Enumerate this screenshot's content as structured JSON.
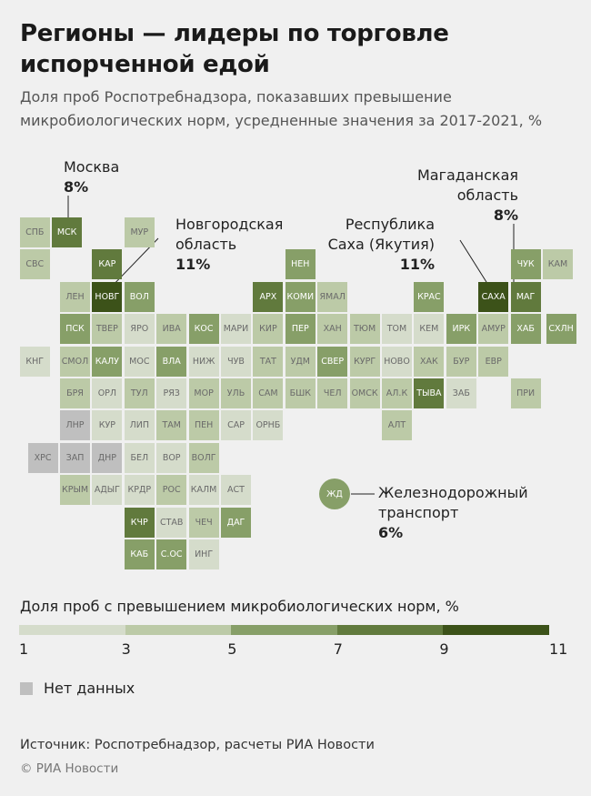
{
  "title": "Регионы — лидеры по торговле испорченной едой",
  "subtitle": "Доля проб Роспотребнадзора, показавших превышение микробиологических норм, усредненные значения за 2017-2021, %",
  "chart_data": {
    "type": "heatmap",
    "subtype": "tile-map",
    "bins": [
      {
        "range": [
          1,
          3
        ],
        "color": "#d5dccb"
      },
      {
        "range": [
          3,
          5
        ],
        "color": "#bccaa7"
      },
      {
        "range": [
          5,
          7
        ],
        "color": "#879f68"
      },
      {
        "range": [
          7,
          9
        ],
        "color": "#617a3d"
      },
      {
        "range": [
          9,
          11
        ],
        "color": "#3c5219"
      }
    ],
    "no_data_color": "#bfbfbf",
    "tiles": [
      {
        "code": "СПБ",
        "bin": 2
      },
      {
        "code": "МСК",
        "bin": 4,
        "value": 8
      },
      {
        "code": "МУР",
        "bin": 2
      },
      {
        "code": "СВС",
        "bin": 2
      },
      {
        "code": "КАР",
        "bin": 4
      },
      {
        "code": "НЕН",
        "bin": 3
      },
      {
        "code": "ЧУК",
        "bin": 3
      },
      {
        "code": "КАМ",
        "bin": 2
      },
      {
        "code": "ЛЕН",
        "bin": 2
      },
      {
        "code": "НОВГ",
        "bin": 5,
        "value": 11
      },
      {
        "code": "ВОЛ",
        "bin": 3
      },
      {
        "code": "АРХ",
        "bin": 4
      },
      {
        "code": "КОМИ",
        "bin": 3
      },
      {
        "code": "ЯМАЛ",
        "bin": 2
      },
      {
        "code": "КРАС",
        "bin": 3
      },
      {
        "code": "САХА",
        "bin": 5,
        "value": 11
      },
      {
        "code": "МАГ",
        "bin": 4,
        "value": 8
      },
      {
        "code": "ПСК",
        "bin": 3
      },
      {
        "code": "ТВЕР",
        "bin": 2
      },
      {
        "code": "ЯРО",
        "bin": 1
      },
      {
        "code": "ИВА",
        "bin": 2
      },
      {
        "code": "КОС",
        "bin": 3
      },
      {
        "code": "МАРИ",
        "bin": 1
      },
      {
        "code": "КИР",
        "bin": 2
      },
      {
        "code": "ПЕР",
        "bin": 3
      },
      {
        "code": "ХАН",
        "bin": 2
      },
      {
        "code": "ТЮМ",
        "bin": 2
      },
      {
        "code": "ТОМ",
        "bin": 1
      },
      {
        "code": "КЕМ",
        "bin": 1
      },
      {
        "code": "ИРК",
        "bin": 3
      },
      {
        "code": "АМУР",
        "bin": 2
      },
      {
        "code": "ХАБ",
        "bin": 3
      },
      {
        "code": "СХЛН",
        "bin": 3
      },
      {
        "code": "КНГ",
        "bin": 1
      },
      {
        "code": "СМОЛ",
        "bin": 2
      },
      {
        "code": "КАЛУ",
        "bin": 3
      },
      {
        "code": "МОС",
        "bin": 1
      },
      {
        "code": "ВЛА",
        "bin": 3
      },
      {
        "code": "НИЖ",
        "bin": 1
      },
      {
        "code": "ЧУВ",
        "bin": 1
      },
      {
        "code": "ТАТ",
        "bin": 2
      },
      {
        "code": "УДМ",
        "bin": 2
      },
      {
        "code": "СВЕР",
        "bin": 3
      },
      {
        "code": "КУРГ",
        "bin": 2
      },
      {
        "code": "НОВО",
        "bin": 1
      },
      {
        "code": "ХАК",
        "bin": 2
      },
      {
        "code": "БУР",
        "bin": 2
      },
      {
        "code": "ЕВР",
        "bin": 2
      },
      {
        "code": "БРЯ",
        "bin": 2
      },
      {
        "code": "ОРЛ",
        "bin": 1
      },
      {
        "code": "ТУЛ",
        "bin": 2
      },
      {
        "code": "РЯЗ",
        "bin": 1
      },
      {
        "code": "МОР",
        "bin": 2
      },
      {
        "code": "УЛЬ",
        "bin": 2
      },
      {
        "code": "САМ",
        "bin": 2
      },
      {
        "code": "БШК",
        "bin": 2
      },
      {
        "code": "ЧЕЛ",
        "bin": 2
      },
      {
        "code": "ОМСК",
        "bin": 2
      },
      {
        "code": "АЛ.К",
        "bin": 2
      },
      {
        "code": "ТЫВА",
        "bin": 4
      },
      {
        "code": "ЗАБ",
        "bin": 1
      },
      {
        "code": "ПРИ",
        "bin": 2
      },
      {
        "code": "ЛНР",
        "bin": null
      },
      {
        "code": "КУР",
        "bin": 1
      },
      {
        "code": "ЛИП",
        "bin": 1
      },
      {
        "code": "ТАМ",
        "bin": 2
      },
      {
        "code": "ПЕН",
        "bin": 2
      },
      {
        "code": "САР",
        "bin": 1
      },
      {
        "code": "ОРНБ",
        "bin": 1
      },
      {
        "code": "АЛТ",
        "bin": 2
      },
      {
        "code": "ХРС",
        "bin": null
      },
      {
        "code": "ЗАП",
        "bin": null
      },
      {
        "code": "ДНР",
        "bin": null
      },
      {
        "code": "БЕЛ",
        "bin": 1
      },
      {
        "code": "ВОР",
        "bin": 1
      },
      {
        "code": "ВОЛГ",
        "bin": 2
      },
      {
        "code": "КРЫМ",
        "bin": 2
      },
      {
        "code": "АДЫГ",
        "bin": 1
      },
      {
        "code": "КРДР",
        "bin": 1
      },
      {
        "code": "РОС",
        "bin": 2
      },
      {
        "code": "КАЛМ",
        "bin": 1
      },
      {
        "code": "АСТ",
        "bin": 1
      },
      {
        "code": "КЧР",
        "bin": 4
      },
      {
        "code": "СТАВ",
        "bin": 1
      },
      {
        "code": "ЧЕЧ",
        "bin": 2
      },
      {
        "code": "ДАГ",
        "bin": 3
      },
      {
        "code": "КАБ",
        "bin": 3
      },
      {
        "code": "С.ОС",
        "bin": 3
      },
      {
        "code": "ИНГ",
        "bin": 1
      }
    ],
    "railway": {
      "code": "ЖД",
      "bin": 3,
      "value": 6
    }
  },
  "annotations": {
    "moscow": {
      "name": "Москва",
      "value": "8%"
    },
    "novgorod": {
      "line1": "Новгородская",
      "line2": "область",
      "value": "11%"
    },
    "sakha": {
      "line1": "Республика",
      "line2": "Саха (Якутия)",
      "value": "11%"
    },
    "magadan": {
      "line1": "Магаданская",
      "line2": "область",
      "value": "8%"
    },
    "railway": {
      "line1": "Железнодорожный",
      "line2": "транспорт",
      "value": "6%"
    }
  },
  "legend": {
    "title": "Доля проб с превышением микробиологических норм, %",
    "ticks": [
      "1",
      "3",
      "5",
      "7",
      "9",
      "11"
    ],
    "no_data": "Нет данных"
  },
  "source": "Источник: Роспотребнадзор, расчеты РИА Новости",
  "copyright": "© РИА Новости"
}
